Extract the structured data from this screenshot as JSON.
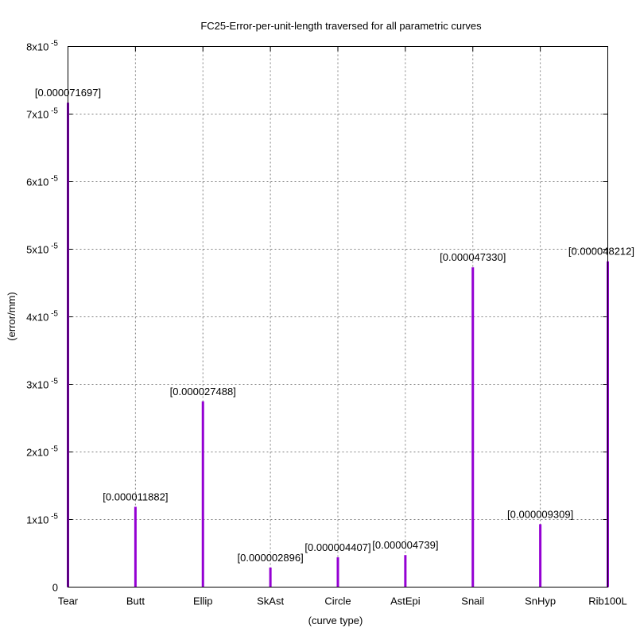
{
  "chart_data": {
    "type": "bar",
    "title": "FC25-Error-per-unit-length traversed for all parametric curves",
    "xlabel": "(curve type)",
    "ylabel": "(error/mm)",
    "ylim": [
      0,
      8e-05
    ],
    "grid": true,
    "bar_color": "#9400d3",
    "categories": [
      "Tear",
      "Butt",
      "Ellip",
      "SkAst",
      "Circle",
      "AstEpi",
      "Snail",
      "SnHyp",
      "Rib100L"
    ],
    "values": [
      7.1697e-05,
      1.1882e-05,
      2.7488e-05,
      2.896e-06,
      4.407e-06,
      4.739e-06,
      4.733e-05,
      9.309e-06,
      4.8212e-05
    ],
    "data_labels": [
      "[0.000071697]",
      "[0.000011882]",
      "[0.000027488]",
      "[0.000002896]",
      "[0.000004407]",
      "[0.000004739]",
      "[0.000047330]",
      "[0.000009309]",
      "[0.000048212]"
    ],
    "y_ticks": [
      {
        "value": 0,
        "mantissa": "0",
        "exponent": ""
      },
      {
        "value": 1e-05,
        "mantissa": "1x10",
        "exponent": "-5"
      },
      {
        "value": 2e-05,
        "mantissa": "2x10",
        "exponent": "-5"
      },
      {
        "value": 3e-05,
        "mantissa": "3x10",
        "exponent": "-5"
      },
      {
        "value": 4e-05,
        "mantissa": "4x10",
        "exponent": "-5"
      },
      {
        "value": 5e-05,
        "mantissa": "5x10",
        "exponent": "-5"
      },
      {
        "value": 6e-05,
        "mantissa": "6x10",
        "exponent": "-5"
      },
      {
        "value": 7e-05,
        "mantissa": "7x10",
        "exponent": "-5"
      },
      {
        "value": 8e-05,
        "mantissa": "8x10",
        "exponent": "-5"
      }
    ]
  }
}
